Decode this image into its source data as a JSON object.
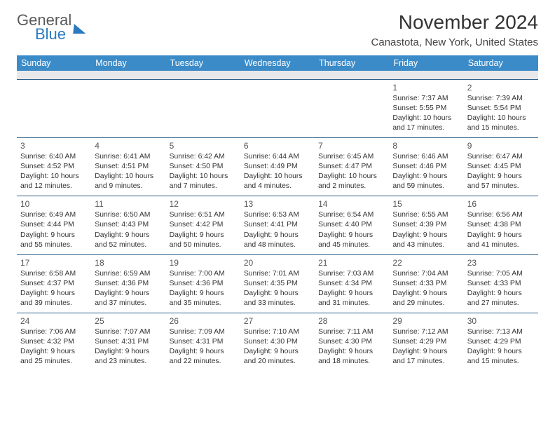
{
  "brand": {
    "part1": "General",
    "part2": "Blue"
  },
  "title": "November 2024",
  "subtitle": "Canastota, New York, United States",
  "colors": {
    "header_bg": "#3b8bc8",
    "header_fg": "#ffffff",
    "spacer_bg": "#e8e8ea",
    "rule": "#2a5f8a",
    "brand_accent": "#2a7ac0",
    "text": "#333333"
  },
  "typography": {
    "title_pt": 28,
    "subtitle_pt": 15,
    "dayhead_pt": 12.5,
    "cell_pt": 10.4
  },
  "weekdays": [
    "Sunday",
    "Monday",
    "Tuesday",
    "Wednesday",
    "Thursday",
    "Friday",
    "Saturday"
  ],
  "weeks": [
    [
      null,
      null,
      null,
      null,
      null,
      {
        "n": "1",
        "sr": "Sunrise: 7:37 AM",
        "ss": "Sunset: 5:55 PM",
        "d1": "Daylight: 10 hours",
        "d2": "and 17 minutes."
      },
      {
        "n": "2",
        "sr": "Sunrise: 7:39 AM",
        "ss": "Sunset: 5:54 PM",
        "d1": "Daylight: 10 hours",
        "d2": "and 15 minutes."
      }
    ],
    [
      {
        "n": "3",
        "sr": "Sunrise: 6:40 AM",
        "ss": "Sunset: 4:52 PM",
        "d1": "Daylight: 10 hours",
        "d2": "and 12 minutes."
      },
      {
        "n": "4",
        "sr": "Sunrise: 6:41 AM",
        "ss": "Sunset: 4:51 PM",
        "d1": "Daylight: 10 hours",
        "d2": "and 9 minutes."
      },
      {
        "n": "5",
        "sr": "Sunrise: 6:42 AM",
        "ss": "Sunset: 4:50 PM",
        "d1": "Daylight: 10 hours",
        "d2": "and 7 minutes."
      },
      {
        "n": "6",
        "sr": "Sunrise: 6:44 AM",
        "ss": "Sunset: 4:49 PM",
        "d1": "Daylight: 10 hours",
        "d2": "and 4 minutes."
      },
      {
        "n": "7",
        "sr": "Sunrise: 6:45 AM",
        "ss": "Sunset: 4:47 PM",
        "d1": "Daylight: 10 hours",
        "d2": "and 2 minutes."
      },
      {
        "n": "8",
        "sr": "Sunrise: 6:46 AM",
        "ss": "Sunset: 4:46 PM",
        "d1": "Daylight: 9 hours",
        "d2": "and 59 minutes."
      },
      {
        "n": "9",
        "sr": "Sunrise: 6:47 AM",
        "ss": "Sunset: 4:45 PM",
        "d1": "Daylight: 9 hours",
        "d2": "and 57 minutes."
      }
    ],
    [
      {
        "n": "10",
        "sr": "Sunrise: 6:49 AM",
        "ss": "Sunset: 4:44 PM",
        "d1": "Daylight: 9 hours",
        "d2": "and 55 minutes."
      },
      {
        "n": "11",
        "sr": "Sunrise: 6:50 AM",
        "ss": "Sunset: 4:43 PM",
        "d1": "Daylight: 9 hours",
        "d2": "and 52 minutes."
      },
      {
        "n": "12",
        "sr": "Sunrise: 6:51 AM",
        "ss": "Sunset: 4:42 PM",
        "d1": "Daylight: 9 hours",
        "d2": "and 50 minutes."
      },
      {
        "n": "13",
        "sr": "Sunrise: 6:53 AM",
        "ss": "Sunset: 4:41 PM",
        "d1": "Daylight: 9 hours",
        "d2": "and 48 minutes."
      },
      {
        "n": "14",
        "sr": "Sunrise: 6:54 AM",
        "ss": "Sunset: 4:40 PM",
        "d1": "Daylight: 9 hours",
        "d2": "and 45 minutes."
      },
      {
        "n": "15",
        "sr": "Sunrise: 6:55 AM",
        "ss": "Sunset: 4:39 PM",
        "d1": "Daylight: 9 hours",
        "d2": "and 43 minutes."
      },
      {
        "n": "16",
        "sr": "Sunrise: 6:56 AM",
        "ss": "Sunset: 4:38 PM",
        "d1": "Daylight: 9 hours",
        "d2": "and 41 minutes."
      }
    ],
    [
      {
        "n": "17",
        "sr": "Sunrise: 6:58 AM",
        "ss": "Sunset: 4:37 PM",
        "d1": "Daylight: 9 hours",
        "d2": "and 39 minutes."
      },
      {
        "n": "18",
        "sr": "Sunrise: 6:59 AM",
        "ss": "Sunset: 4:36 PM",
        "d1": "Daylight: 9 hours",
        "d2": "and 37 minutes."
      },
      {
        "n": "19",
        "sr": "Sunrise: 7:00 AM",
        "ss": "Sunset: 4:36 PM",
        "d1": "Daylight: 9 hours",
        "d2": "and 35 minutes."
      },
      {
        "n": "20",
        "sr": "Sunrise: 7:01 AM",
        "ss": "Sunset: 4:35 PM",
        "d1": "Daylight: 9 hours",
        "d2": "and 33 minutes."
      },
      {
        "n": "21",
        "sr": "Sunrise: 7:03 AM",
        "ss": "Sunset: 4:34 PM",
        "d1": "Daylight: 9 hours",
        "d2": "and 31 minutes."
      },
      {
        "n": "22",
        "sr": "Sunrise: 7:04 AM",
        "ss": "Sunset: 4:33 PM",
        "d1": "Daylight: 9 hours",
        "d2": "and 29 minutes."
      },
      {
        "n": "23",
        "sr": "Sunrise: 7:05 AM",
        "ss": "Sunset: 4:33 PM",
        "d1": "Daylight: 9 hours",
        "d2": "and 27 minutes."
      }
    ],
    [
      {
        "n": "24",
        "sr": "Sunrise: 7:06 AM",
        "ss": "Sunset: 4:32 PM",
        "d1": "Daylight: 9 hours",
        "d2": "and 25 minutes."
      },
      {
        "n": "25",
        "sr": "Sunrise: 7:07 AM",
        "ss": "Sunset: 4:31 PM",
        "d1": "Daylight: 9 hours",
        "d2": "and 23 minutes."
      },
      {
        "n": "26",
        "sr": "Sunrise: 7:09 AM",
        "ss": "Sunset: 4:31 PM",
        "d1": "Daylight: 9 hours",
        "d2": "and 22 minutes."
      },
      {
        "n": "27",
        "sr": "Sunrise: 7:10 AM",
        "ss": "Sunset: 4:30 PM",
        "d1": "Daylight: 9 hours",
        "d2": "and 20 minutes."
      },
      {
        "n": "28",
        "sr": "Sunrise: 7:11 AM",
        "ss": "Sunset: 4:30 PM",
        "d1": "Daylight: 9 hours",
        "d2": "and 18 minutes."
      },
      {
        "n": "29",
        "sr": "Sunrise: 7:12 AM",
        "ss": "Sunset: 4:29 PM",
        "d1": "Daylight: 9 hours",
        "d2": "and 17 minutes."
      },
      {
        "n": "30",
        "sr": "Sunrise: 7:13 AM",
        "ss": "Sunset: 4:29 PM",
        "d1": "Daylight: 9 hours",
        "d2": "and 15 minutes."
      }
    ]
  ]
}
